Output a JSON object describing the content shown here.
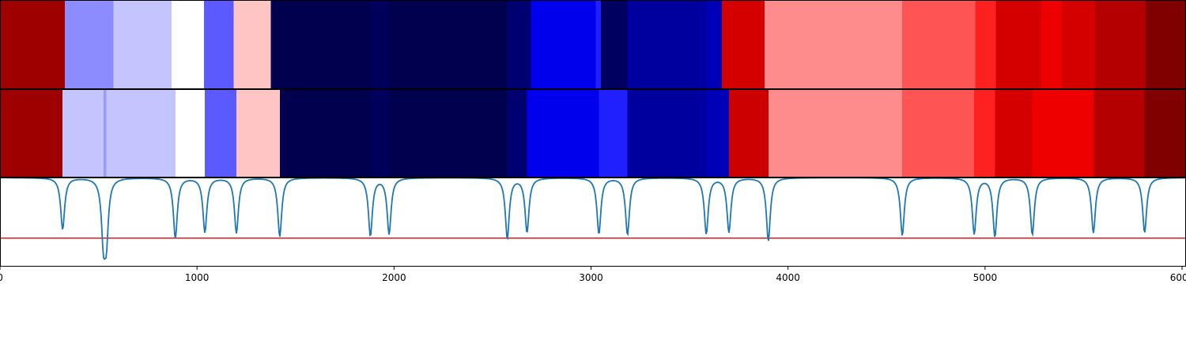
{
  "chart_data": {
    "type": "heatmap",
    "title": "",
    "xlabel": "",
    "ylabel": "",
    "xlim": [
      0,
      6020
    ],
    "grid": false,
    "x_ticks": [
      0,
      1000,
      2000,
      3000,
      4000,
      5000,
      6000
    ],
    "tick_labels": [
      "0",
      "1000",
      "2000",
      "3000",
      "4000",
      "5000",
      "6000"
    ],
    "tracks": [
      {
        "segments": [
          {
            "start": 0,
            "end": 330,
            "color": "#9e0000"
          },
          {
            "start": 330,
            "end": 575,
            "color": "#8c8cff"
          },
          {
            "start": 575,
            "end": 870,
            "color": "#c4c4ff"
          },
          {
            "start": 870,
            "end": 1035,
            "color": "#ffffff"
          },
          {
            "start": 1035,
            "end": 1185,
            "color": "#5a5aff"
          },
          {
            "start": 1185,
            "end": 1375,
            "color": "#ffc4c4"
          },
          {
            "start": 1375,
            "end": 1880,
            "color": "#00004e"
          },
          {
            "start": 1880,
            "end": 1975,
            "color": "#00005c"
          },
          {
            "start": 1975,
            "end": 2575,
            "color": "#00004e"
          },
          {
            "start": 2575,
            "end": 2695,
            "color": "#000070"
          },
          {
            "start": 2695,
            "end": 3025,
            "color": "#0000ec"
          },
          {
            "start": 3025,
            "end": 3050,
            "color": "#2020ff"
          },
          {
            "start": 3050,
            "end": 3185,
            "color": "#000060"
          },
          {
            "start": 3185,
            "end": 3585,
            "color": "#00009e"
          },
          {
            "start": 3585,
            "end": 3665,
            "color": "#0000b6"
          },
          {
            "start": 3665,
            "end": 3880,
            "color": "#d40000"
          },
          {
            "start": 3880,
            "end": 4580,
            "color": "#ff8c8c"
          },
          {
            "start": 4580,
            "end": 4950,
            "color": "#ff5454"
          },
          {
            "start": 4950,
            "end": 5055,
            "color": "#ff2020"
          },
          {
            "start": 5055,
            "end": 5285,
            "color": "#d40000"
          },
          {
            "start": 5285,
            "end": 5390,
            "color": "#ee0000"
          },
          {
            "start": 5390,
            "end": 5560,
            "color": "#d40000"
          },
          {
            "start": 5560,
            "end": 5815,
            "color": "#b40000"
          },
          {
            "start": 5815,
            "end": 6020,
            "color": "#800000"
          }
        ]
      },
      {
        "segments": [
          {
            "start": 0,
            "end": 318,
            "color": "#9e0000"
          },
          {
            "start": 318,
            "end": 525,
            "color": "#c4c4ff"
          },
          {
            "start": 525,
            "end": 540,
            "color": "#9a9aff"
          },
          {
            "start": 540,
            "end": 890,
            "color": "#c4c4ff"
          },
          {
            "start": 890,
            "end": 1040,
            "color": "#ffffff"
          },
          {
            "start": 1040,
            "end": 1200,
            "color": "#5a5aff"
          },
          {
            "start": 1200,
            "end": 1420,
            "color": "#ffc4c4"
          },
          {
            "start": 1420,
            "end": 1880,
            "color": "#00004e"
          },
          {
            "start": 1880,
            "end": 1975,
            "color": "#00005c"
          },
          {
            "start": 1975,
            "end": 2575,
            "color": "#00004e"
          },
          {
            "start": 2575,
            "end": 2675,
            "color": "#000070"
          },
          {
            "start": 2675,
            "end": 3040,
            "color": "#0000ec"
          },
          {
            "start": 3040,
            "end": 3185,
            "color": "#2020ff"
          },
          {
            "start": 3185,
            "end": 3585,
            "color": "#00009e"
          },
          {
            "start": 3585,
            "end": 3700,
            "color": "#0000b6"
          },
          {
            "start": 3700,
            "end": 3900,
            "color": "#cc0000"
          },
          {
            "start": 3900,
            "end": 4580,
            "color": "#ff8c8c"
          },
          {
            "start": 4580,
            "end": 4945,
            "color": "#ff5454"
          },
          {
            "start": 4945,
            "end": 5050,
            "color": "#ff2020"
          },
          {
            "start": 5050,
            "end": 5240,
            "color": "#d40000"
          },
          {
            "start": 5240,
            "end": 5550,
            "color": "#ee0000"
          },
          {
            "start": 5550,
            "end": 5810,
            "color": "#b40000"
          },
          {
            "start": 5810,
            "end": 6020,
            "color": "#800000"
          }
        ]
      }
    ],
    "signal": {
      "color": "#1f77b4",
      "baseline": 1.0,
      "ylim": [
        0,
        1.0
      ],
      "dips": [
        {
          "x": 318,
          "depth": 0.58
        },
        {
          "x": 525,
          "depth": 0.64
        },
        {
          "x": 540,
          "depth": 0.62
        },
        {
          "x": 890,
          "depth": 0.68
        },
        {
          "x": 1040,
          "depth": 0.61
        },
        {
          "x": 1200,
          "depth": 0.62
        },
        {
          "x": 1420,
          "depth": 0.66
        },
        {
          "x": 1880,
          "depth": 0.65
        },
        {
          "x": 1975,
          "depth": 0.63
        },
        {
          "x": 2575,
          "depth": 0.68
        },
        {
          "x": 2675,
          "depth": 0.61
        },
        {
          "x": 3040,
          "depth": 0.63
        },
        {
          "x": 3185,
          "depth": 0.64
        },
        {
          "x": 3585,
          "depth": 0.63
        },
        {
          "x": 3700,
          "depth": 0.61
        },
        {
          "x": 3900,
          "depth": 0.71
        },
        {
          "x": 4580,
          "depth": 0.65
        },
        {
          "x": 4945,
          "depth": 0.63
        },
        {
          "x": 5050,
          "depth": 0.66
        },
        {
          "x": 5240,
          "depth": 0.64
        },
        {
          "x": 5550,
          "depth": 0.62
        },
        {
          "x": 5810,
          "depth": 0.62
        }
      ]
    },
    "threshold": {
      "value": 0.32,
      "color": "#e41a1c"
    }
  }
}
